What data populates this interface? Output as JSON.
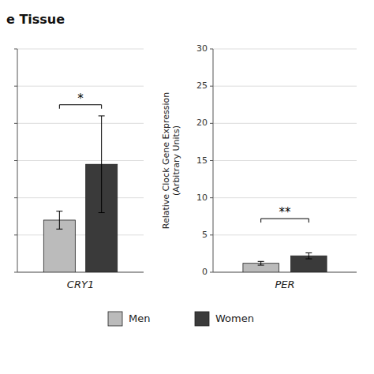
{
  "chart_data": [
    {
      "type": "bar",
      "title": "e Tissue",
      "xlabel": "CRY1",
      "series": [
        {
          "name": "Men",
          "color": "#bbbbbb",
          "values": [
            7.0
          ],
          "errors": [
            1.2
          ]
        },
        {
          "name": "Women",
          "color": "#3a3a3a",
          "values": [
            14.5
          ],
          "errors": [
            6.5
          ]
        }
      ],
      "ylim": [
        0,
        30
      ],
      "yticks": [
        0,
        5,
        10,
        15,
        20,
        25,
        30
      ],
      "grid": true,
      "tick_labels": false,
      "legend": "bottom",
      "annotations": [
        {
          "text": "*",
          "y": 22.5
        }
      ]
    },
    {
      "type": "bar",
      "xlabel": "PER",
      "ylabel": "Relative Clock Gene Expression\n(Arbitrary Units)",
      "series": [
        {
          "color": "#bbbbbb",
          "values": [
            1.2
          ],
          "errors": [
            0.25
          ]
        },
        {
          "color": "#3a3a3a",
          "values": [
            2.2
          ],
          "errors": [
            0.4
          ]
        }
      ],
      "ylim": [
        0,
        30
      ],
      "yticks": [
        0,
        5,
        10,
        15,
        20,
        25,
        30
      ],
      "grid": true,
      "tick_labels": "y",
      "annotations": [
        {
          "text": "**",
          "y": 7.2
        }
      ]
    }
  ]
}
